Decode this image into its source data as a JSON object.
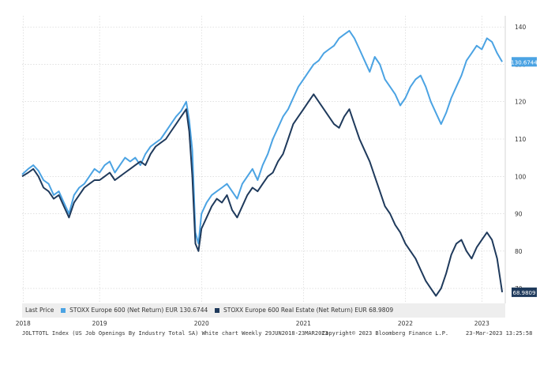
{
  "colors": {
    "light": "#4ba3e3",
    "dark": "#1f3a5c",
    "grid": "#cfcfcf"
  },
  "legend": {
    "prefix": "Last Price",
    "series1": "STOXX Europe 600 (Net Return) EUR 130.6744",
    "series2": "STOXX Europe 600 Real Estate (Net Return) EUR 68.9809"
  },
  "footer": {
    "left": "JOLTTOTL Index (US Job Openings By Industry Total SA) White chart  Weekly 29JUN2018-23MAR2023",
    "center": "Copyright© 2023 Bloomberg Finance L.P.",
    "right": "23-Mar-2023 13:25:58"
  },
  "chart_data": {
    "type": "line",
    "x_range": [
      2018.49,
      2023.23
    ],
    "ylim": [
      66,
      143
    ],
    "yticks": [
      70,
      80,
      90,
      100,
      110,
      120,
      130,
      140
    ],
    "xticks": [
      {
        "label": "2018",
        "x": 2018.5
      },
      {
        "label": "2019",
        "x": 2019.25
      },
      {
        "label": "2020",
        "x": 2020.25
      },
      {
        "label": "2021",
        "x": 2021.25
      },
      {
        "label": "2022",
        "x": 2022.25
      },
      {
        "label": "2023",
        "x": 2023.0
      }
    ],
    "last_labels": [
      "130.6744",
      "68.9809"
    ],
    "series": [
      {
        "name": "STOXX Europe 600 (Net Return) EUR",
        "color": "#4ba3e3",
        "x": [
          2018.49,
          2018.55,
          2018.6,
          2018.65,
          2018.7,
          2018.75,
          2018.8,
          2018.85,
          2018.9,
          2018.95,
          2019.0,
          2019.05,
          2019.1,
          2019.15,
          2019.2,
          2019.25,
          2019.3,
          2019.35,
          2019.4,
          2019.45,
          2019.5,
          2019.55,
          2019.6,
          2019.65,
          2019.7,
          2019.75,
          2019.8,
          2019.85,
          2019.9,
          2019.95,
          2020.0,
          2020.05,
          2020.1,
          2020.13,
          2020.16,
          2020.19,
          2020.22,
          2020.25,
          2020.3,
          2020.35,
          2020.4,
          2020.45,
          2020.5,
          2020.55,
          2020.6,
          2020.65,
          2020.7,
          2020.75,
          2020.8,
          2020.85,
          2020.9,
          2020.95,
          2021.0,
          2021.05,
          2021.1,
          2021.15,
          2021.2,
          2021.25,
          2021.3,
          2021.35,
          2021.4,
          2021.45,
          2021.5,
          2021.55,
          2021.6,
          2021.65,
          2021.7,
          2021.75,
          2021.8,
          2021.85,
          2021.9,
          2021.95,
          2022.0,
          2022.05,
          2022.1,
          2022.15,
          2022.2,
          2022.25,
          2022.3,
          2022.35,
          2022.4,
          2022.45,
          2022.5,
          2022.55,
          2022.6,
          2022.65,
          2022.7,
          2022.75,
          2022.8,
          2022.85,
          2022.9,
          2022.95,
          2023.0,
          2023.05,
          2023.1,
          2023.15,
          2023.2
        ],
        "y": [
          100.5,
          102,
          103,
          101.5,
          99,
          98,
          95,
          96,
          93,
          90,
          95,
          97,
          98,
          100,
          102,
          101,
          103,
          104,
          101,
          103,
          105,
          104,
          105,
          103,
          106,
          108,
          109,
          110,
          112,
          114,
          116,
          117.5,
          120,
          115,
          107,
          85,
          82,
          90,
          93,
          95,
          96,
          97,
          98,
          96,
          94,
          98,
          100,
          102,
          99,
          103,
          106,
          110,
          113,
          116,
          118,
          121,
          124,
          126,
          128,
          130,
          131,
          133,
          134,
          135,
          137,
          138,
          139,
          137,
          134,
          131,
          128,
          132,
          130,
          126,
          124,
          122,
          119,
          121,
          124,
          126,
          127,
          124,
          120,
          117,
          114,
          117,
          121,
          124,
          127,
          131,
          133,
          135,
          134,
          137,
          136,
          133,
          130.67
        ]
      },
      {
        "name": "STOXX Europe 600 Real Estate (Net Return) EUR",
        "color": "#1f3a5c",
        "x": [
          2018.49,
          2018.55,
          2018.6,
          2018.65,
          2018.7,
          2018.75,
          2018.8,
          2018.85,
          2018.9,
          2018.95,
          2019.0,
          2019.05,
          2019.1,
          2019.15,
          2019.2,
          2019.25,
          2019.3,
          2019.35,
          2019.4,
          2019.45,
          2019.5,
          2019.55,
          2019.6,
          2019.65,
          2019.7,
          2019.75,
          2019.8,
          2019.85,
          2019.9,
          2019.95,
          2020.0,
          2020.05,
          2020.1,
          2020.13,
          2020.16,
          2020.19,
          2020.22,
          2020.25,
          2020.3,
          2020.35,
          2020.4,
          2020.45,
          2020.5,
          2020.55,
          2020.6,
          2020.65,
          2020.7,
          2020.75,
          2020.8,
          2020.85,
          2020.9,
          2020.95,
          2021.0,
          2021.05,
          2021.1,
          2021.15,
          2021.2,
          2021.25,
          2021.3,
          2021.35,
          2021.4,
          2021.45,
          2021.5,
          2021.55,
          2021.6,
          2021.65,
          2021.7,
          2021.75,
          2021.8,
          2021.85,
          2021.9,
          2021.95,
          2022.0,
          2022.05,
          2022.1,
          2022.15,
          2022.2,
          2022.25,
          2022.3,
          2022.35,
          2022.4,
          2022.45,
          2022.5,
          2022.55,
          2022.6,
          2022.65,
          2022.7,
          2022.75,
          2022.8,
          2022.85,
          2022.9,
          2022.95,
          2023.0,
          2023.05,
          2023.1,
          2023.15,
          2023.2
        ],
        "y": [
          100,
          101,
          102,
          100,
          97,
          96,
          94,
          95,
          92,
          89,
          93,
          95,
          97,
          98,
          99,
          99,
          100,
          101,
          99,
          100,
          101,
          102,
          103,
          104,
          103,
          106,
          108,
          109,
          110,
          112,
          114,
          116,
          118,
          112,
          100,
          82,
          80,
          86,
          89,
          92,
          94,
          93,
          95,
          91,
          89,
          92,
          95,
          97,
          96,
          98,
          100,
          101,
          104,
          106,
          110,
          114,
          116,
          118,
          120,
          122,
          120,
          118,
          116,
          114,
          113,
          116,
          118,
          114,
          110,
          107,
          104,
          100,
          96,
          92,
          90,
          87,
          85,
          82,
          80,
          78,
          75,
          72,
          70,
          68,
          70,
          74,
          79,
          82,
          83,
          80,
          78,
          81,
          83,
          85,
          83,
          78,
          68.98
        ]
      }
    ]
  }
}
